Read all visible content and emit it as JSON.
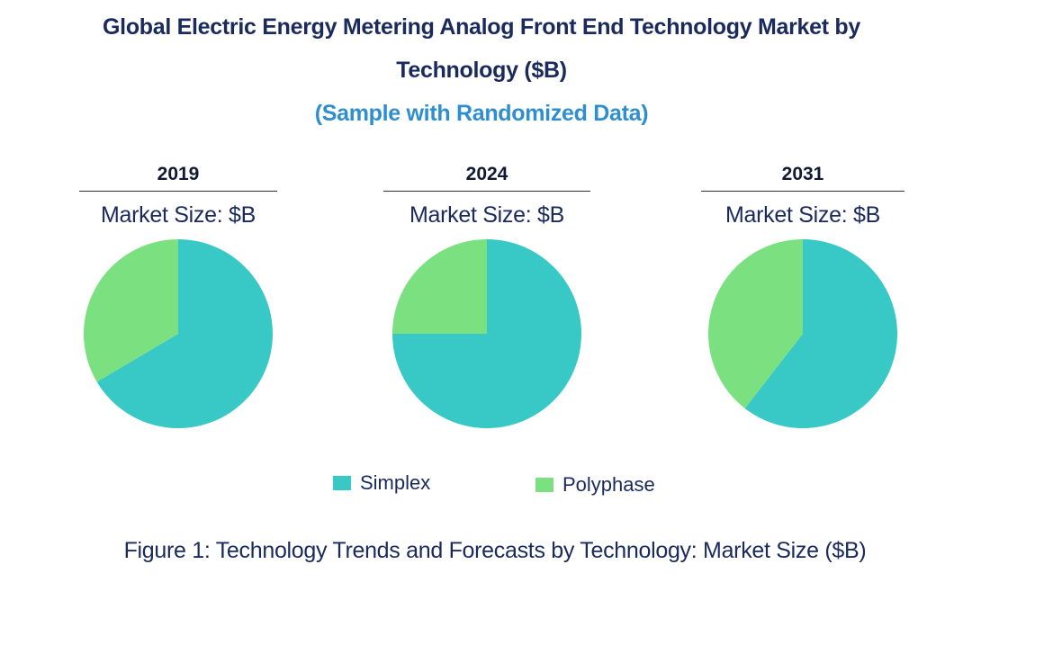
{
  "header": {
    "title_line1": "Global Electric Energy Metering Analog Front End Technology Market by",
    "title_line2": "Technology ($B)",
    "subtitle": "(Sample with Randomized Data)"
  },
  "chart_data": {
    "type": "pie",
    "title": "Global Electric Energy Metering Analog Front End Technology Market by Technology ($B)",
    "subtitle": "(Sample with Randomized Data)",
    "legend": [
      "Simplex",
      "Polyphase"
    ],
    "colors": {
      "Simplex": "#38c8c5",
      "Polyphase": "#7be07f"
    },
    "pies": [
      {
        "year": "2019",
        "label": "Market Size: $B",
        "slices": [
          {
            "name": "Simplex",
            "value": 66.5
          },
          {
            "name": "Polyphase",
            "value": 33.5
          }
        ]
      },
      {
        "year": "2024",
        "label": "Market Size: $B",
        "slices": [
          {
            "name": "Simplex",
            "value": 75
          },
          {
            "name": "Polyphase",
            "value": 25
          }
        ]
      },
      {
        "year": "2031",
        "label": "Market Size: $B",
        "slices": [
          {
            "name": "Simplex",
            "value": 60.5
          },
          {
            "name": "Polyphase",
            "value": 39.5
          }
        ]
      }
    ]
  },
  "caption": "Figure 1: Technology Trends and Forecasts by Technology: Market Size ($B)"
}
